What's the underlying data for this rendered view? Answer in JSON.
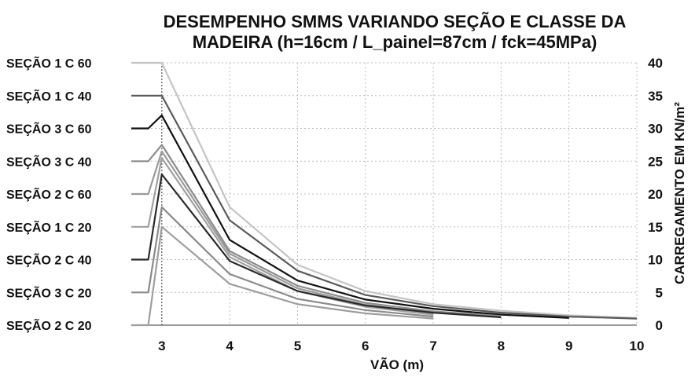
{
  "chart_data": {
    "type": "line",
    "title": "DESEMPENHO SMMS VARIANDO SEÇÃO E CLASSE DA MADEIRA (h=16cm / L_painel=87cm / fck=45MPa)",
    "title_lines": [
      "DESEMPENHO SMMS VARIANDO SEÇÃO E CLASSE DA",
      "MADEIRA (h=16cm / L_painel=87cm / fck=45MPa)"
    ],
    "xlabel": "VÃO (m)",
    "ylabel": "CARREGAMENTO EM KN/m²",
    "x_ticks": [
      "3",
      "4",
      "5",
      "6",
      "7",
      "8",
      "9",
      "10"
    ],
    "y_ticks": [
      "0",
      "5",
      "10",
      "15",
      "20",
      "25",
      "30",
      "35",
      "40"
    ],
    "xlim": [
      3,
      10
    ],
    "ylim": [
      0,
      40
    ],
    "grid": true,
    "legend_position": "left",
    "series": [
      {
        "name": "SEÇÃO 1 C 60",
        "color": "#c4c4c4",
        "x": [
          3,
          4,
          5,
          6,
          7,
          8,
          9,
          10
        ],
        "values": [
          40,
          18,
          9.2,
          5.2,
          3.2,
          2.2,
          1.5,
          1.1
        ]
      },
      {
        "name": "SEÇÃO 1 C 40",
        "color": "#5a5a5a",
        "x": [
          3,
          4,
          5,
          6,
          7,
          8,
          9,
          10
        ],
        "values": [
          35,
          16,
          8.3,
          4.6,
          2.9,
          1.9,
          1.3,
          1.0
        ]
      },
      {
        "name": "SEÇÃO 3 C 60",
        "color": "#111111",
        "x": [
          3,
          4,
          5,
          6,
          7,
          8,
          9
        ],
        "values": [
          32,
          13,
          6.8,
          3.9,
          2.5,
          1.6,
          1.1
        ]
      },
      {
        "name": "SEÇÃO 3 C 40",
        "color": "#8c8c8c",
        "x": [
          3,
          4,
          5,
          6,
          7,
          8
        ],
        "values": [
          27.5,
          11.3,
          6.0,
          3.4,
          2.1,
          1.4
        ]
      },
      {
        "name": "SEÇÃO 2 C 60",
        "color": "#9a9a9a",
        "x": [
          3,
          4,
          5,
          6,
          7
        ],
        "values": [
          26.5,
          10.9,
          5.6,
          3.1,
          1.8
        ]
      },
      {
        "name": "SEÇÃO 1 C 20",
        "color": "#a0a0a0",
        "x": [
          3,
          4,
          5,
          6,
          7
        ],
        "values": [
          25.5,
          10.4,
          5.2,
          2.8,
          1.6
        ]
      },
      {
        "name": "SEÇÃO 2 C 40",
        "color": "#2a2a2a",
        "x": [
          3,
          4,
          5,
          6,
          7,
          8
        ],
        "values": [
          23,
          9.8,
          5.2,
          3.0,
          1.9,
          1.2
        ]
      },
      {
        "name": "SEÇÃO 3 C 20",
        "color": "#8a8a8a",
        "x": [
          3,
          4,
          5,
          6,
          7
        ],
        "values": [
          18,
          7.8,
          4.0,
          2.3,
          1.3
        ]
      },
      {
        "name": "SEÇÃO 2 C 20",
        "color": "#9e9e9e",
        "x": [
          3,
          4,
          5,
          6,
          7
        ],
        "values": [
          15,
          6.3,
          3.2,
          1.8,
          1.0
        ]
      }
    ]
  }
}
